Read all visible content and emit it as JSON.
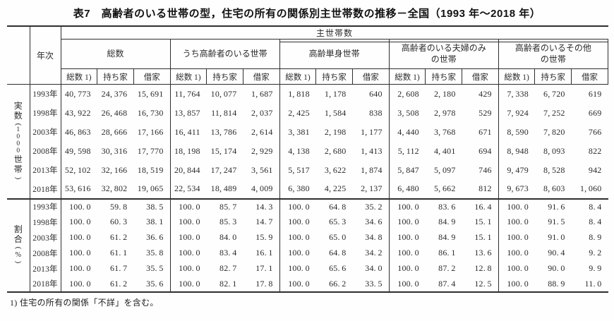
{
  "title": "表7　高齢者のいる世帯の型，住宅の所有の関係別主世帯数の推移－全国（1993 年～2018 年）",
  "table": {
    "top_header": "主世帯数",
    "year_header": "年次",
    "groups": [
      {
        "label": "総数"
      },
      {
        "label": "うち高齢者のいる世帯"
      },
      {
        "label": "高齢単身世帯"
      },
      {
        "label": "高齢者のいる夫婦のみ\nの世帯"
      },
      {
        "label": "高齢者のいるその他\nの世帯"
      }
    ],
    "sub_headers": [
      "総数 1)",
      "持ち家",
      "借家"
    ],
    "sections": [
      {
        "label": "実数（1000世帯）",
        "rows": [
          {
            "year": "1993年",
            "values": [
              "40,773",
              "24,376",
              "15,691",
              "11,764",
              "10,077",
              "1,687",
              "1,818",
              "1,178",
              "640",
              "2,608",
              "2,180",
              "429",
              "7,338",
              "6,720",
              "619"
            ]
          },
          {
            "year": "1998年",
            "values": [
              "43,922",
              "26,468",
              "16,730",
              "13,857",
              "11,814",
              "2,037",
              "2,425",
              "1,584",
              "838",
              "3,508",
              "2,978",
              "529",
              "7,924",
              "7,252",
              "669"
            ]
          },
          {
            "year": "2003年",
            "values": [
              "46,863",
              "28,666",
              "17,166",
              "16,411",
              "13,786",
              "2,614",
              "3,381",
              "2,198",
              "1,177",
              "4,440",
              "3,768",
              "671",
              "8,590",
              "7,820",
              "766"
            ]
          },
          {
            "year": "2008年",
            "values": [
              "49,598",
              "30,316",
              "17,770",
              "18,198",
              "15,174",
              "2,929",
              "4,138",
              "2,680",
              "1,413",
              "5,112",
              "4,401",
              "694",
              "8,948",
              "8,093",
              "822"
            ]
          },
          {
            "year": "2013年",
            "values": [
              "52,102",
              "32,166",
              "18,519",
              "20,844",
              "17,247",
              "3,561",
              "5,517",
              "3,622",
              "1,874",
              "5,847",
              "5,097",
              "746",
              "9,479",
              "8,528",
              "942"
            ]
          },
          {
            "year": "2018年",
            "values": [
              "53,616",
              "32,802",
              "19,065",
              "22,534",
              "18,489",
              "4,009",
              "6,380",
              "4,225",
              "2,137",
              "6,480",
              "5,662",
              "812",
              "9,673",
              "8,603",
              "1,060"
            ]
          }
        ]
      },
      {
        "label": "割合（%）",
        "rows": [
          {
            "year": "1993年",
            "values": [
              "100.0",
              "59.8",
              "38.5",
              "100.0",
              "85.7",
              "14.3",
              "100.0",
              "64.8",
              "35.2",
              "100.0",
              "83.6",
              "16.4",
              "100.0",
              "91.6",
              "8.4"
            ]
          },
          {
            "year": "1998年",
            "values": [
              "100.0",
              "60.3",
              "38.1",
              "100.0",
              "85.3",
              "14.7",
              "100.0",
              "65.3",
              "34.6",
              "100.0",
              "84.9",
              "15.1",
              "100.0",
              "91.5",
              "8.4"
            ]
          },
          {
            "year": "2003年",
            "values": [
              "100.0",
              "61.2",
              "36.6",
              "100.0",
              "84.0",
              "15.9",
              "100.0",
              "65.0",
              "34.8",
              "100.0",
              "84.9",
              "15.1",
              "100.0",
              "91.0",
              "8.9"
            ]
          },
          {
            "year": "2008年",
            "values": [
              "100.0",
              "61.1",
              "35.8",
              "100.0",
              "83.4",
              "16.1",
              "100.0",
              "64.8",
              "34.2",
              "100.0",
              "86.1",
              "13.6",
              "100.0",
              "90.4",
              "9.2"
            ]
          },
          {
            "year": "2013年",
            "values": [
              "100.0",
              "61.7",
              "35.5",
              "100.0",
              "82.7",
              "17.1",
              "100.0",
              "65.6",
              "34.0",
              "100.0",
              "87.2",
              "12.8",
              "100.0",
              "90.0",
              "9.9"
            ]
          },
          {
            "year": "2018年",
            "values": [
              "100.0",
              "61.2",
              "35.6",
              "100.0",
              "82.1",
              "17.8",
              "100.0",
              "66.2",
              "33.5",
              "100.0",
              "87.4",
              "12.5",
              "100.0",
              "88.9",
              "11.0"
            ]
          }
        ]
      }
    ]
  },
  "footnote": "1) 住宅の所有の関係「不詳」を含む。"
}
